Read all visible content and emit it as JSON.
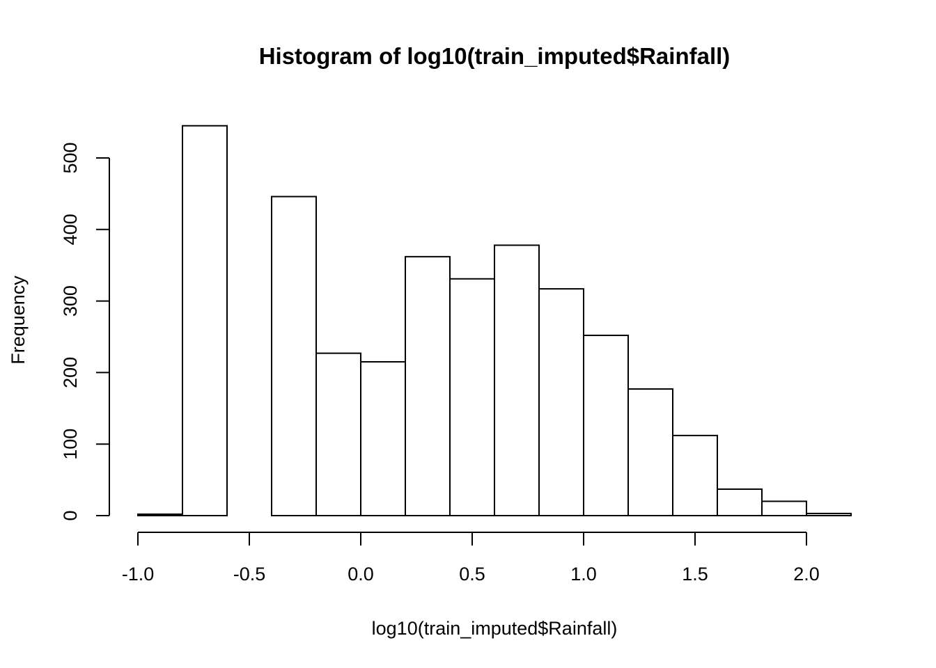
{
  "chart_data": {
    "type": "bar",
    "title": "Histogram of log10(train_imputed$Rainfall)",
    "xlabel": "log10(train_imputed$Rainfall)",
    "ylabel": "Frequency",
    "bin_edges": [
      -1.0,
      -0.8,
      -0.6,
      -0.4,
      -0.2,
      0.0,
      0.2,
      0.4,
      0.6,
      0.8,
      1.0,
      1.2,
      1.4,
      1.6,
      1.8,
      2.0,
      2.2
    ],
    "values": [
      2,
      545,
      0,
      446,
      227,
      215,
      362,
      331,
      378,
      317,
      252,
      177,
      112,
      37,
      20,
      3
    ],
    "xlim": [
      -1.0,
      2.2
    ],
    "ylim": [
      0,
      560
    ],
    "x_ticks": [
      -1.0,
      -0.5,
      0.0,
      0.5,
      1.0,
      1.5,
      2.0
    ],
    "x_tick_labels": [
      "-1.0",
      "-0.5",
      "0.0",
      "0.5",
      "1.0",
      "1.5",
      "2.0"
    ],
    "y_ticks": [
      0,
      100,
      200,
      300,
      400,
      500
    ],
    "y_tick_labels": [
      "0",
      "100",
      "200",
      "300",
      "400",
      "500"
    ],
    "grid": false,
    "legend": "none",
    "bar_fill": "#ffffff",
    "bar_stroke": "#000000"
  }
}
